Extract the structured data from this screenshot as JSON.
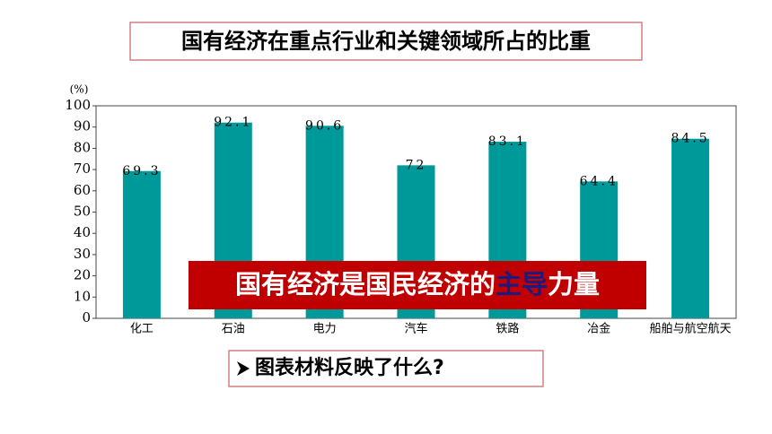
{
  "chart_data": {
    "type": "bar",
    "y_label": "(%)",
    "categories": [
      "化工",
      "石油",
      "电力",
      "汽车",
      "铁路",
      "冶金",
      "船舶与航空航天"
    ],
    "values": [
      69.3,
      92.1,
      90.6,
      72,
      83.1,
      64.4,
      84.5
    ],
    "color": "#009999",
    "ylim": [
      0,
      100
    ],
    "yticks": [
      0,
      10,
      20,
      30,
      40,
      50,
      60,
      70,
      80,
      90,
      100
    ],
    "grid": false
  },
  "title": "国有经济在重点行业和关键领域所占的比重",
  "banner": {
    "parts": [
      "国有经济是国民经济的",
      "主导",
      "力量"
    ]
  },
  "question": "图表材料反映了什么?"
}
